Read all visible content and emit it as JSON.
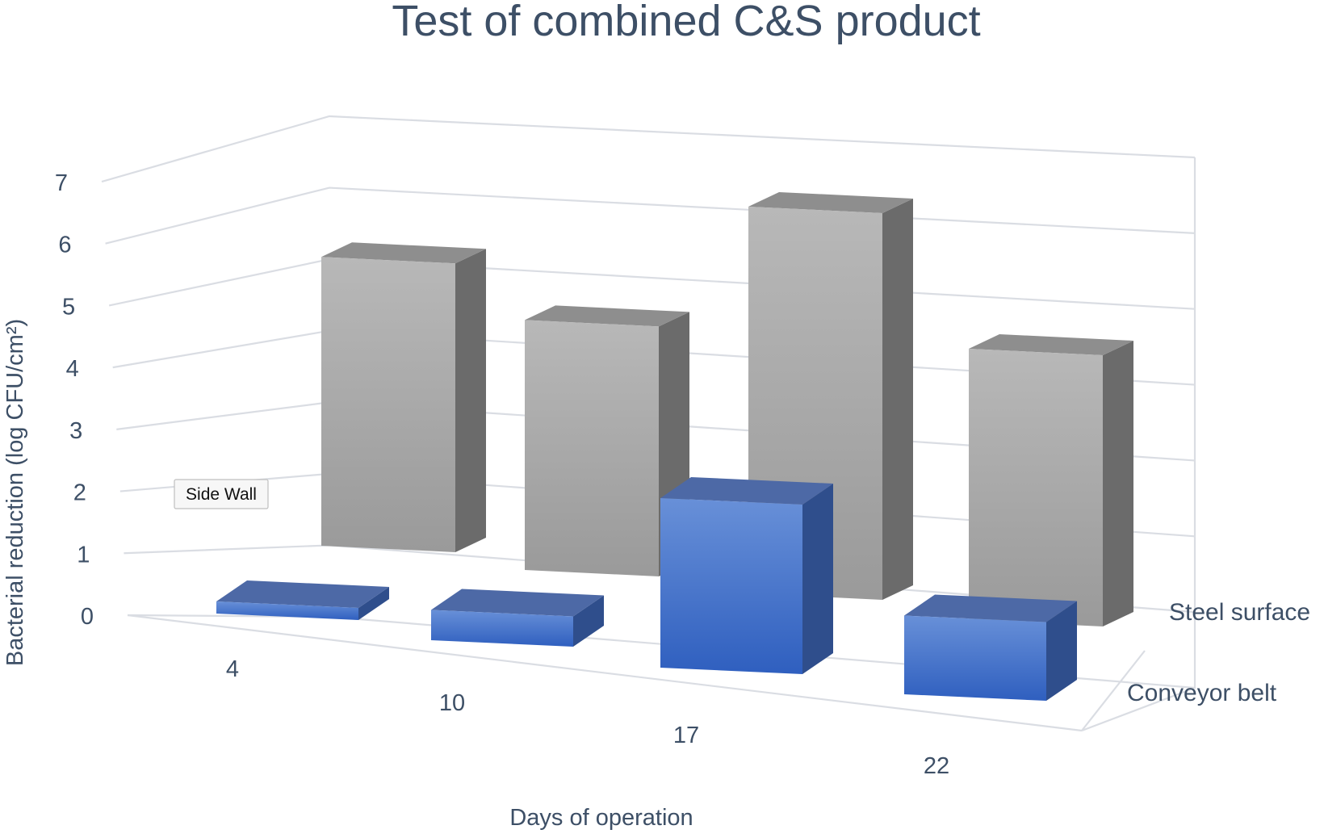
{
  "chart_data": {
    "type": "bar",
    "variant": "3d-column",
    "title": "Test of combined C&S product",
    "xlabel": "Days of operation",
    "ylabel": "Bacterial reduction (log CFU/cm²)",
    "categories": [
      "4",
      "10",
      "17",
      "22"
    ],
    "ylim": [
      0,
      7
    ],
    "yticks": [
      "0",
      "1",
      "2",
      "3",
      "4",
      "5",
      "6",
      "7"
    ],
    "grid": true,
    "legend": "none",
    "series": [
      {
        "name": "Steel surface",
        "values": [
          4.9,
          4.3,
          6.7,
          4.8
        ],
        "color": "#a6a6a6"
      },
      {
        "name": "Conveyor belt",
        "values": [
          0.2,
          0.5,
          2.8,
          1.3
        ],
        "color": "#4472c4"
      }
    ],
    "annotations": [
      {
        "text": "Side Wall"
      }
    ]
  }
}
